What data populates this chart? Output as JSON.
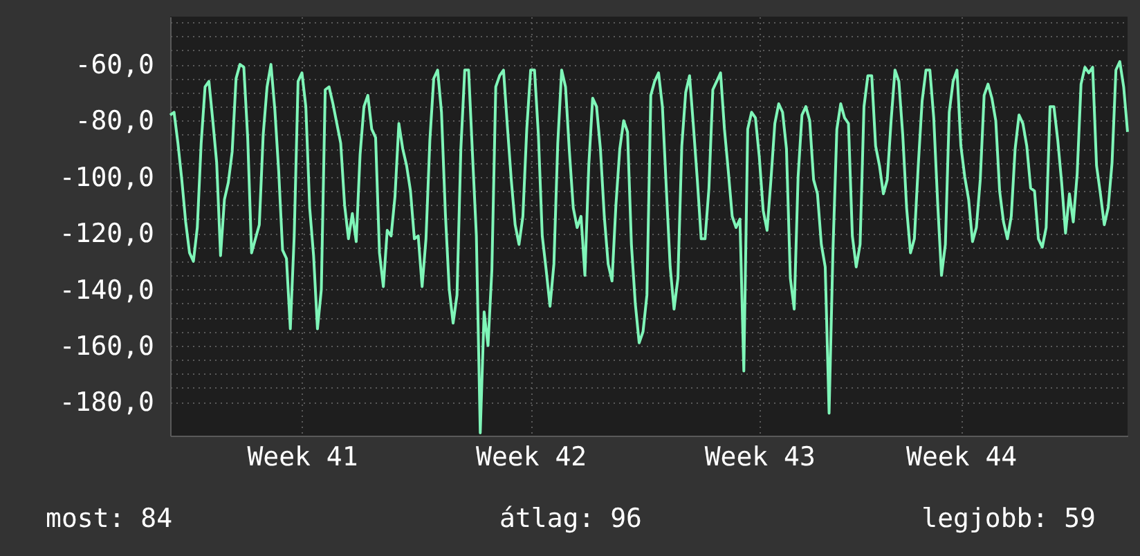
{
  "chart_data": {
    "type": "line",
    "categories": [
      null,
      null,
      null,
      null,
      null,
      null,
      null,
      null,
      null,
      null,
      null,
      null,
      null,
      null,
      null,
      null,
      null,
      null,
      null,
      null,
      null,
      null,
      null,
      null,
      null,
      null,
      null,
      null,
      null,
      null,
      null,
      null,
      null,
      null,
      "Week 41",
      null,
      null,
      null,
      null,
      null,
      null,
      null,
      null,
      null,
      null,
      null,
      null,
      null,
      null,
      null,
      null,
      null,
      null,
      null,
      null,
      null,
      null,
      null,
      null,
      null,
      null,
      null,
      null,
      null,
      null,
      null,
      null,
      null,
      null,
      null,
      null,
      null,
      null,
      null,
      null,
      null,
      null,
      null,
      null,
      null,
      null,
      null,
      null,
      null,
      null,
      null,
      null,
      null,
      null,
      null,
      null,
      null,
      null,
      "Week 42",
      null,
      null,
      null,
      null,
      null,
      null,
      null,
      null,
      null,
      null,
      null,
      null,
      null,
      null,
      null,
      null,
      null,
      null,
      null,
      null,
      null,
      null,
      null,
      null,
      null,
      null,
      null,
      null,
      null,
      null,
      null,
      null,
      null,
      null,
      null,
      null,
      null,
      null,
      null,
      null,
      null,
      null,
      null,
      null,
      null,
      null,
      null,
      null,
      null,
      null,
      null,
      null,
      null,
      null,
      null,
      null,
      null,
      null,
      "Week 43",
      null,
      null,
      null,
      null,
      null,
      null,
      null,
      null,
      null,
      null,
      null,
      null,
      null,
      null,
      null,
      null,
      null,
      null,
      null,
      null,
      null,
      null,
      null,
      null,
      null,
      null,
      null,
      null,
      null,
      null,
      null,
      null,
      null,
      null,
      null,
      null,
      null,
      null,
      null,
      null,
      null,
      null,
      null,
      null,
      null,
      null,
      null,
      null,
      null,
      null,
      null,
      "Week 44",
      null,
      null,
      null,
      null,
      null,
      null,
      null,
      null,
      null,
      null,
      null,
      null,
      null,
      null,
      null,
      null,
      null,
      null,
      null,
      null,
      null,
      null,
      null,
      null,
      null,
      null,
      null,
      null,
      null,
      null,
      null,
      null,
      null,
      null,
      null,
      null,
      null,
      null,
      null,
      null,
      null,
      null,
      null
    ],
    "series": [
      {
        "color": "#7ff5b8",
        "values": [
          -78,
          -77,
          -88,
          -101,
          -116,
          -127,
          -130,
          -118,
          -88,
          -68,
          -66,
          -80,
          -95,
          -128,
          -108,
          -102,
          -91,
          -65,
          -60,
          -61,
          -86,
          -127,
          -122,
          -117,
          -85,
          -68,
          -60,
          -76,
          -98,
          -126,
          -129,
          -154,
          -121,
          -66,
          -63,
          -75,
          -111,
          -128,
          -154,
          -140,
          -69,
          -68,
          -74,
          -81,
          -88,
          -110,
          -122,
          -113,
          -123,
          -92,
          -75,
          -71,
          -83,
          -86,
          -127,
          -139,
          -119,
          -121,
          -107,
          -81,
          -90,
          -96,
          -105,
          -122,
          -121,
          -139,
          -122,
          -87,
          -65,
          -62,
          -77,
          -113,
          -140,
          -152,
          -142,
          -90,
          -62,
          -62,
          -92,
          -121,
          -191,
          -148,
          -160,
          -133,
          -68,
          -64,
          -62,
          -82,
          -101,
          -117,
          -124,
          -114,
          -83,
          -62,
          -62,
          -85,
          -121,
          -133,
          -146,
          -131,
          -88,
          -62,
          -68,
          -91,
          -111,
          -118,
          -114,
          -135,
          -96,
          -72,
          -75,
          -90,
          -114,
          -131,
          -137,
          -110,
          -90,
          -80,
          -84,
          -124,
          -145,
          -159,
          -155,
          -142,
          -71,
          -66,
          -63,
          -75,
          -104,
          -132,
          -147,
          -136,
          -89,
          -70,
          -64,
          -82,
          -101,
          -122,
          -122,
          -104,
          -69,
          -66,
          -63,
          -83,
          -98,
          -114,
          -118,
          -115,
          -169,
          -83,
          -77,
          -79,
          -93,
          -112,
          -119,
          -101,
          -81,
          -74,
          -77,
          -90,
          -136,
          -147,
          -100,
          -78,
          -75,
          -80,
          -101,
          -106,
          -124,
          -132,
          -184,
          -126,
          -83,
          -74,
          -79,
          -81,
          -121,
          -132,
          -124,
          -75,
          -64,
          -64,
          -89,
          -96,
          -106,
          -101,
          -80,
          -62,
          -66,
          -85,
          -111,
          -127,
          -122,
          -96,
          -73,
          -62,
          -62,
          -79,
          -109,
          -135,
          -124,
          -77,
          -66,
          -62,
          -89,
          -100,
          -108,
          -123,
          -118,
          -101,
          -71,
          -67,
          -72,
          -80,
          -105,
          -116,
          -122,
          -114,
          -90,
          -78,
          -81,
          -89,
          -104,
          -105,
          -122,
          -125,
          -118,
          -75,
          -75,
          -87,
          -102,
          -120,
          -106,
          -116,
          -99,
          -67,
          -61,
          -63,
          -61,
          -96,
          -106,
          -117,
          -111,
          -95,
          -62,
          -59,
          -68,
          -84
        ]
      }
    ],
    "ylim": [
      -192,
      -43
    ],
    "yticks": [
      {
        "value": -180,
        "label": "-180,0"
      },
      {
        "value": -175,
        "label": null
      },
      {
        "value": -170,
        "label": null
      },
      {
        "value": -165,
        "label": null
      },
      {
        "value": -160,
        "label": "-160,0"
      },
      {
        "value": -155,
        "label": null
      },
      {
        "value": -150,
        "label": null
      },
      {
        "value": -145,
        "label": null
      },
      {
        "value": -140,
        "label": "-140,0"
      },
      {
        "value": -135,
        "label": null
      },
      {
        "value": -130,
        "label": null
      },
      {
        "value": -125,
        "label": null
      },
      {
        "value": -120,
        "label": "-120,0"
      },
      {
        "value": -115,
        "label": null
      },
      {
        "value": -110,
        "label": null
      },
      {
        "value": -105,
        "label": null
      },
      {
        "value": -100,
        "label": "-100,0"
      },
      {
        "value": -95,
        "label": null
      },
      {
        "value": -90,
        "label": null
      },
      {
        "value": -85,
        "label": null
      },
      {
        "value": -80,
        "label": "-80,0"
      },
      {
        "value": -75,
        "label": null
      },
      {
        "value": -70,
        "label": null
      },
      {
        "value": -65,
        "label": null
      },
      {
        "value": -60,
        "label": "-60,0"
      },
      {
        "value": -55,
        "label": null
      },
      {
        "value": -50,
        "label": null
      },
      {
        "value": -45,
        "label": null
      }
    ],
    "grid": true,
    "line_style": "solid",
    "annotations": [
      "most: 84",
      "átlag: 96",
      "legjobb: 59"
    ]
  }
}
